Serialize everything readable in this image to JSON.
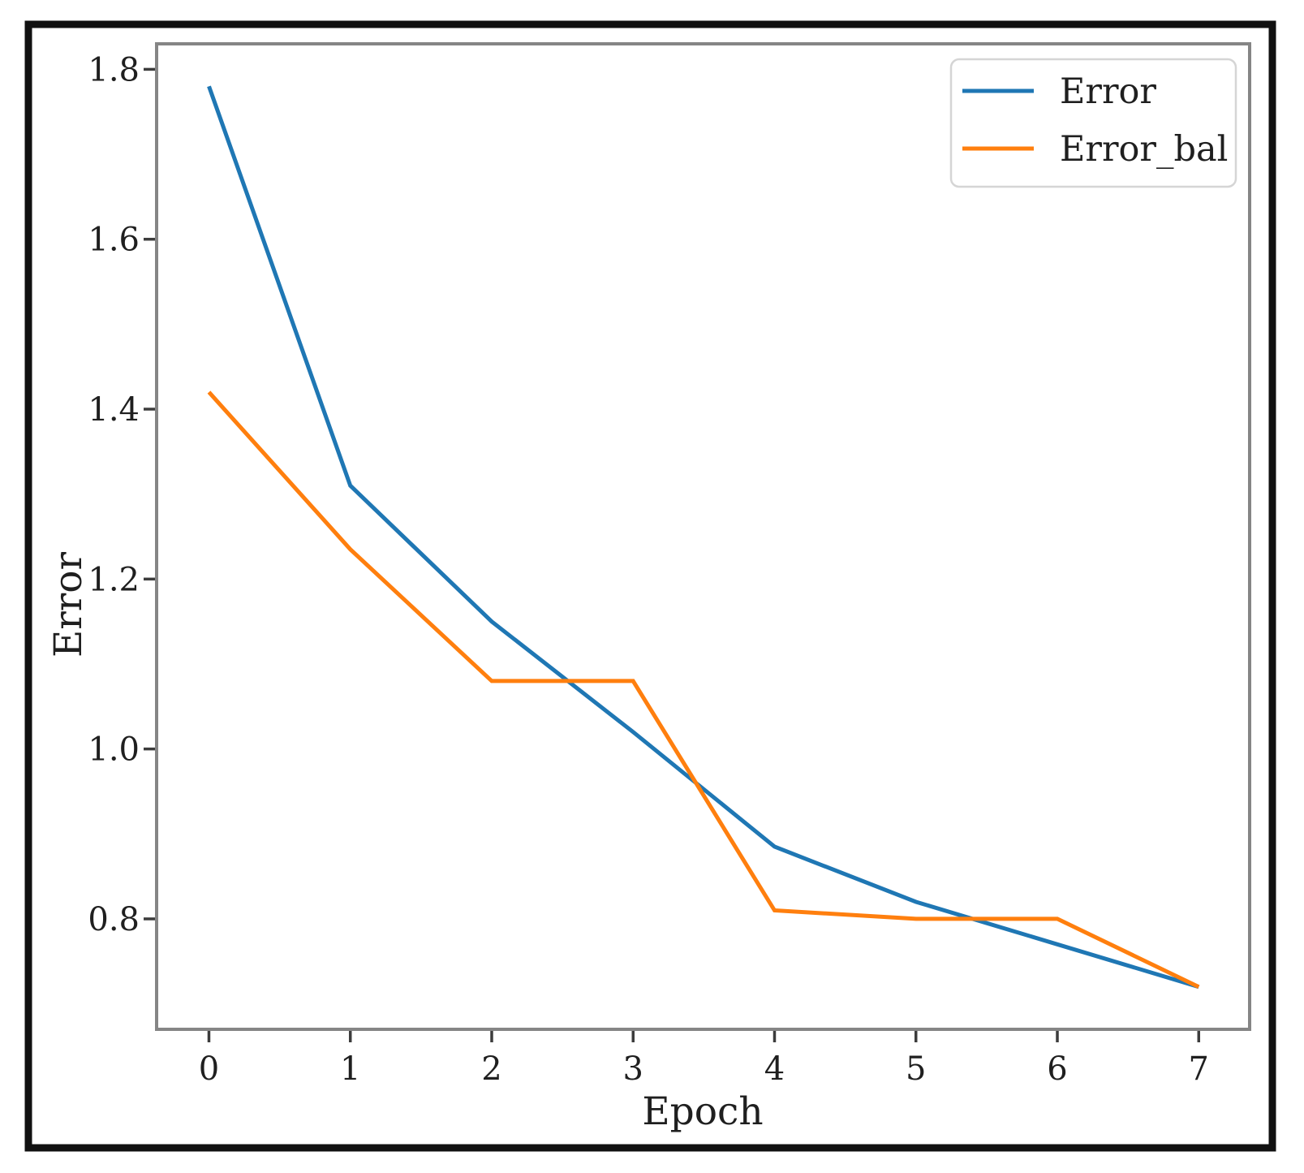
{
  "chart_data": {
    "type": "line",
    "title": "",
    "xlabel": "Epoch",
    "ylabel": "Error",
    "x": [
      0,
      1,
      2,
      3,
      4,
      5,
      6,
      7
    ],
    "series": [
      {
        "name": "Error",
        "color": "#1f77b4",
        "values": [
          1.78,
          1.31,
          1.15,
          1.02,
          0.885,
          0.82,
          0.77,
          0.72
        ]
      },
      {
        "name": "Error_bal",
        "color": "#ff7f0e",
        "values": [
          1.42,
          1.235,
          1.08,
          1.08,
          0.81,
          0.8,
          0.8,
          0.72
        ]
      }
    ],
    "xlim": [
      -0.37,
      7.36
    ],
    "ylim": [
      0.67,
      1.83
    ],
    "xticks": [
      0,
      1,
      2,
      3,
      4,
      5,
      6,
      7
    ],
    "xtick_labels": [
      "0",
      "1",
      "2",
      "3",
      "4",
      "5",
      "6",
      "7"
    ],
    "yticks": [
      0.8,
      1.0,
      1.2,
      1.4,
      1.6,
      1.8
    ],
    "ytick_labels": [
      "0.8",
      "1.0",
      "1.2",
      "1.4",
      "1.6",
      "1.8"
    ],
    "grid": false,
    "legend_position": "upper right",
    "legend_entries": [
      "Error",
      "Error_bal"
    ]
  },
  "styles": {
    "figure_border_color": "#111111",
    "plot_frame_color": "#858585",
    "tick_color": "#3c3c3c",
    "text_color": "#1f1f1f",
    "legend_border_color": "#d5d5d5",
    "legend_fill": "#ffffff",
    "background": "#ffffff"
  }
}
